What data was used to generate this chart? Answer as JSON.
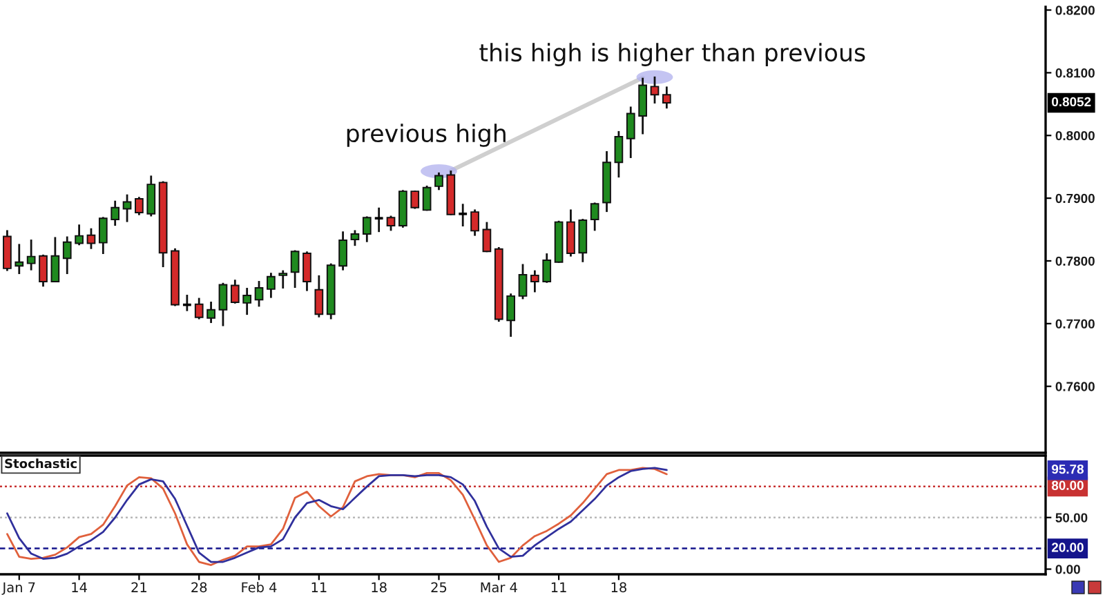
{
  "chart_data": [
    {
      "type": "candlestick",
      "categories": [
        null,
        null,
        null,
        null,
        null,
        null,
        null,
        null,
        null,
        null,
        null,
        null,
        null,
        null,
        null,
        null,
        null,
        null,
        null,
        null,
        null,
        null,
        null,
        null,
        null,
        null,
        null,
        null,
        null,
        null,
        null,
        null,
        null,
        null,
        null,
        null,
        null,
        null,
        null,
        null,
        null,
        null,
        null,
        null,
        null,
        null,
        null,
        null,
        null,
        null,
        null,
        null,
        null,
        null,
        null,
        null,
        null,
        null,
        null,
        null,
        null,
        null,
        null,
        null,
        null,
        null,
        null,
        null,
        null,
        null,
        null,
        null,
        null,
        null,
        null,
        null,
        null,
        null,
        null,
        null,
        null,
        null,
        null,
        null,
        null,
        null,
        null
      ],
      "ohlc": [
        [
          0.7839,
          0.7849,
          0.7784,
          0.7788
        ],
        [
          0.7792,
          0.7827,
          0.7779,
          0.7798
        ],
        [
          0.7796,
          0.7834,
          0.7785,
          0.7807
        ],
        [
          0.7808,
          0.781,
          0.7759,
          0.7767
        ],
        [
          0.7767,
          0.7838,
          0.7766,
          0.7808
        ],
        [
          0.7804,
          0.7839,
          0.7779,
          0.783
        ],
        [
          0.7828,
          0.7858,
          0.7825,
          0.784
        ],
        [
          0.7841,
          0.7852,
          0.7819,
          0.7828
        ],
        [
          0.7829,
          0.787,
          0.7811,
          0.7868
        ],
        [
          0.7866,
          0.7896,
          0.7856,
          0.7885
        ],
        [
          0.7883,
          0.7906,
          0.7862,
          0.7894
        ],
        [
          0.7899,
          0.7902,
          0.7873,
          0.7877
        ],
        [
          0.7875,
          0.7936,
          0.7871,
          0.7922
        ],
        [
          0.7925,
          0.7927,
          0.779,
          0.7813
        ],
        [
          0.7816,
          0.782,
          0.7728,
          0.773
        ],
        [
          0.773,
          0.7746,
          0.772,
          0.773
        ],
        [
          0.7731,
          0.7741,
          0.7707,
          0.771
        ],
        [
          0.7709,
          0.7735,
          0.7701,
          0.7722
        ],
        [
          0.7722,
          0.7765,
          0.7696,
          0.7762
        ],
        [
          0.7761,
          0.777,
          0.7732,
          0.7734
        ],
        [
          0.7733,
          0.7757,
          0.7714,
          0.7745
        ],
        [
          0.7738,
          0.7768,
          0.7727,
          0.7757
        ],
        [
          0.7755,
          0.7781,
          0.7741,
          0.7775
        ],
        [
          0.7777,
          0.7785,
          0.7756,
          0.778
        ],
        [
          0.7782,
          0.7817,
          0.7757,
          0.7815
        ],
        [
          0.7812,
          0.7815,
          0.7752,
          0.7767
        ],
        [
          0.7754,
          0.7777,
          0.771,
          0.7715
        ],
        [
          0.7715,
          0.7796,
          0.7707,
          0.7793
        ],
        [
          0.7792,
          0.7847,
          0.7785,
          0.7833
        ],
        [
          0.7834,
          0.7849,
          0.7824,
          0.7843
        ],
        [
          0.7843,
          0.7871,
          0.783,
          0.7869
        ],
        [
          0.7868,
          0.7885,
          0.7846,
          0.7868
        ],
        [
          0.7869,
          0.7872,
          0.7848,
          0.7856
        ],
        [
          0.7856,
          0.7913,
          0.7853,
          0.7911
        ],
        [
          0.7911,
          0.7912,
          0.7883,
          0.7885
        ],
        [
          0.7881,
          0.792,
          0.788,
          0.7917
        ],
        [
          0.7919,
          0.7941,
          0.7913,
          0.7936
        ],
        [
          0.7937,
          0.7944,
          0.7873,
          0.7874
        ],
        [
          0.7875,
          0.7891,
          0.7855,
          0.7875
        ],
        [
          0.7878,
          0.7882,
          0.784,
          0.7848
        ],
        [
          0.785,
          0.7862,
          0.7814,
          0.7815
        ],
        [
          0.7819,
          0.7822,
          0.7703,
          0.7707
        ],
        [
          0.7705,
          0.7748,
          0.7679,
          0.7744
        ],
        [
          0.7744,
          0.7795,
          0.7739,
          0.7778
        ],
        [
          0.7777,
          0.7785,
          0.775,
          0.7767
        ],
        [
          0.7767,
          0.7812,
          0.7765,
          0.7801
        ],
        [
          0.7798,
          0.7864,
          0.7797,
          0.7862
        ],
        [
          0.7862,
          0.7882,
          0.7807,
          0.7812
        ],
        [
          0.7813,
          0.7867,
          0.7798,
          0.7865
        ],
        [
          0.7866,
          0.7893,
          0.7848,
          0.7891
        ],
        [
          0.7893,
          0.7975,
          0.7878,
          0.7957
        ],
        [
          0.7957,
          0.8007,
          0.7933,
          0.7998
        ],
        [
          0.7995,
          0.8046,
          0.7964,
          0.8035
        ],
        [
          0.8031,
          0.8092,
          0.8002,
          0.808
        ],
        [
          0.8078,
          0.8094,
          0.8051,
          0.8065
        ],
        [
          0.8065,
          0.8078,
          0.8043,
          0.8052
        ],
        null,
        null,
        null,
        null,
        null,
        null,
        null,
        null,
        null,
        null,
        null,
        null,
        null,
        null,
        null,
        null,
        null,
        null,
        null,
        null,
        null,
        null,
        null,
        null,
        null,
        null,
        null,
        null,
        null,
        null,
        null
      ],
      "colors": [
        "#d42a2a",
        "#1f8a1f",
        "#1f8a1f",
        "#d42a2a",
        "#1f8a1f",
        "#1f8a1f",
        "#1f8a1f",
        "#d42a2a",
        "#1f8a1f",
        "#1f8a1f",
        "#1f8a1f",
        "#d42a2a",
        "#1f8a1f",
        "#d42a2a",
        "#d42a2a",
        "#000000",
        "#d42a2a",
        "#1f8a1f",
        "#1f8a1f",
        "#d42a2a",
        "#1f8a1f",
        "#1f8a1f",
        "#1f8a1f",
        "#1f8a1f",
        "#1f8a1f",
        "#d42a2a",
        "#d42a2a",
        "#1f8a1f",
        "#1f8a1f",
        "#1f8a1f",
        "#1f8a1f",
        "#000000",
        "#d42a2a",
        "#1f8a1f",
        "#d42a2a",
        "#1f8a1f",
        "#1f8a1f",
        "#d42a2a",
        "#000000",
        "#d42a2a",
        "#d42a2a",
        "#d42a2a",
        "#1f8a1f",
        "#1f8a1f",
        "#d42a2a",
        "#1f8a1f",
        "#1f8a1f",
        "#d42a2a",
        "#1f8a1f",
        "#1f8a1f",
        "#1f8a1f",
        "#1f8a1f",
        "#1f8a1f",
        "#1f8a1f",
        "#d42a2a",
        "#d42a2a",
        null,
        null,
        null,
        null,
        null,
        null,
        null,
        null,
        null,
        null,
        null,
        null,
        null,
        null,
        null,
        null,
        null,
        null,
        null,
        null,
        null,
        null,
        null,
        null,
        null,
        null,
        null,
        null,
        null,
        null,
        null
      ],
      "series": [
        {
          "type": "line",
          "color": "#cfcfcf",
          "values": [
            null,
            null,
            null,
            null,
            null,
            null,
            null,
            null,
            null,
            null,
            null,
            null,
            null,
            null,
            null,
            null,
            null,
            null,
            null,
            null,
            null,
            null,
            null,
            null,
            null,
            null,
            null,
            null,
            null,
            null,
            null,
            null,
            null,
            null,
            null,
            null,
            null,
            0.7944,
            null,
            null,
            null,
            null,
            null,
            null,
            null,
            null,
            null,
            null,
            null,
            null,
            null,
            null,
            null,
            0.8092,
            null,
            null,
            null,
            null,
            null,
            null,
            null,
            null,
            null,
            null,
            null,
            null,
            null,
            null,
            null,
            null,
            null,
            null,
            null,
            null,
            null,
            null,
            null,
            null,
            null,
            null,
            null,
            null,
            null,
            null,
            null,
            null,
            null
          ]
        },
        {
          "type": "scatter",
          "color": "#b0b0ee",
          "marker": "circle",
          "values": [
            null,
            null,
            null,
            null,
            null,
            null,
            null,
            null,
            null,
            null,
            null,
            null,
            null,
            null,
            null,
            null,
            null,
            null,
            null,
            null,
            null,
            null,
            null,
            null,
            null,
            null,
            null,
            null,
            null,
            null,
            null,
            null,
            null,
            null,
            null,
            null,
            0.7943,
            null,
            null,
            null,
            null,
            null,
            null,
            null,
            null,
            null,
            null,
            null,
            null,
            null,
            null,
            null,
            null,
            null,
            0.8093,
            null,
            null,
            null,
            null,
            null,
            null,
            null,
            null,
            null,
            null,
            null,
            null,
            null,
            null,
            null,
            null,
            null,
            null,
            null,
            null,
            null,
            null,
            null,
            null,
            null,
            null,
            null,
            null,
            null,
            null,
            null,
            null
          ]
        }
      ],
      "ylim": [
        0.7494,
        0.8205
      ],
      "yticks": [
        {
          "value": 0.82,
          "label": "0.8200"
        },
        {
          "value": 0.81,
          "label": "0.8100"
        },
        {
          "value": 0.8,
          "label": "0.8000"
        },
        {
          "value": 0.79,
          "label": "0.7900"
        },
        {
          "value": 0.78,
          "label": "0.7800"
        },
        {
          "value": 0.77,
          "label": "0.7700"
        },
        {
          "value": 0.76,
          "label": "0.7600"
        }
      ],
      "annotations": [
        "0.8052",
        "previous high",
        "this high is higher than previous"
      ]
    },
    {
      "type": "line",
      "title": "Stochastic",
      "categories": [
        null,
        "Jan 7",
        null,
        null,
        null,
        null,
        "14",
        null,
        null,
        null,
        null,
        "21",
        null,
        null,
        null,
        null,
        "28",
        null,
        null,
        null,
        null,
        "Feb 4",
        null,
        null,
        null,
        null,
        "11",
        null,
        null,
        null,
        null,
        "18",
        null,
        null,
        null,
        null,
        "25",
        null,
        null,
        null,
        null,
        "Mar 4",
        null,
        null,
        null,
        null,
        "11",
        null,
        null,
        null,
        null,
        "18",
        null,
        null,
        null,
        null,
        null,
        null,
        null,
        null,
        null,
        null,
        null,
        null,
        null,
        null,
        null,
        null,
        null,
        null,
        null,
        null,
        null,
        null,
        null,
        null,
        null,
        null,
        null,
        null,
        null,
        null,
        null,
        null,
        null,
        null,
        null
      ],
      "series": [
        {
          "color": "#e0603c",
          "values": [
            34,
            12,
            10,
            11,
            14,
            21,
            31,
            34,
            43,
            61,
            81,
            89,
            88,
            78,
            54,
            24,
            7,
            4,
            9,
            13,
            22,
            22,
            24,
            39,
            69,
            75,
            61,
            51,
            60,
            85,
            90,
            92,
            91,
            91,
            89,
            93,
            93,
            86,
            72,
            48,
            23,
            7,
            11,
            23,
            32,
            37,
            44,
            52,
            64,
            78,
            92,
            96,
            96,
            98,
            97,
            92,
            null,
            null,
            null,
            null,
            null,
            null,
            null,
            null,
            null,
            null,
            null,
            null,
            null,
            null,
            null,
            null,
            null,
            null,
            null,
            null,
            null,
            null,
            null,
            null,
            null,
            null,
            null,
            null,
            null,
            null,
            null
          ]
        },
        {
          "color": "#30309c",
          "values": [
            54,
            30,
            15,
            10,
            11,
            15,
            22,
            28,
            36,
            50,
            67,
            82,
            87,
            85,
            68,
            42,
            16,
            7,
            7,
            11,
            16,
            21,
            22,
            29,
            50,
            64,
            67,
            61,
            58,
            69,
            80,
            90,
            91,
            91,
            90,
            91,
            91,
            89,
            82,
            66,
            41,
            20,
            12,
            13,
            23,
            31,
            39,
            46,
            57,
            68,
            81,
            89,
            95,
            97,
            98,
            96,
            null,
            null,
            null,
            null,
            null,
            null,
            null,
            null,
            null,
            null,
            null,
            null,
            null,
            null,
            null,
            null,
            null,
            null,
            null,
            null,
            null,
            null,
            null,
            null,
            null,
            null,
            null,
            null,
            null,
            null,
            null
          ]
        }
      ],
      "ylim": [
        -5,
        110
      ],
      "yticks": [
        {
          "value": 0,
          "label": "0.00"
        },
        {
          "value": 50,
          "label": "50.00"
        }
      ],
      "ref_lines": [
        {
          "axis": "y",
          "value": 80,
          "label": "80.00",
          "color": "#c83232",
          "line_style": "dotted"
        },
        {
          "axis": "y",
          "value": 50,
          "color": "#b8b8b8",
          "line_style": "dotted"
        },
        {
          "axis": "y",
          "value": 20,
          "label": "20.00",
          "color": "#14148c",
          "line_style": "dashed"
        }
      ],
      "annotations": [
        "95.78"
      ]
    }
  ]
}
